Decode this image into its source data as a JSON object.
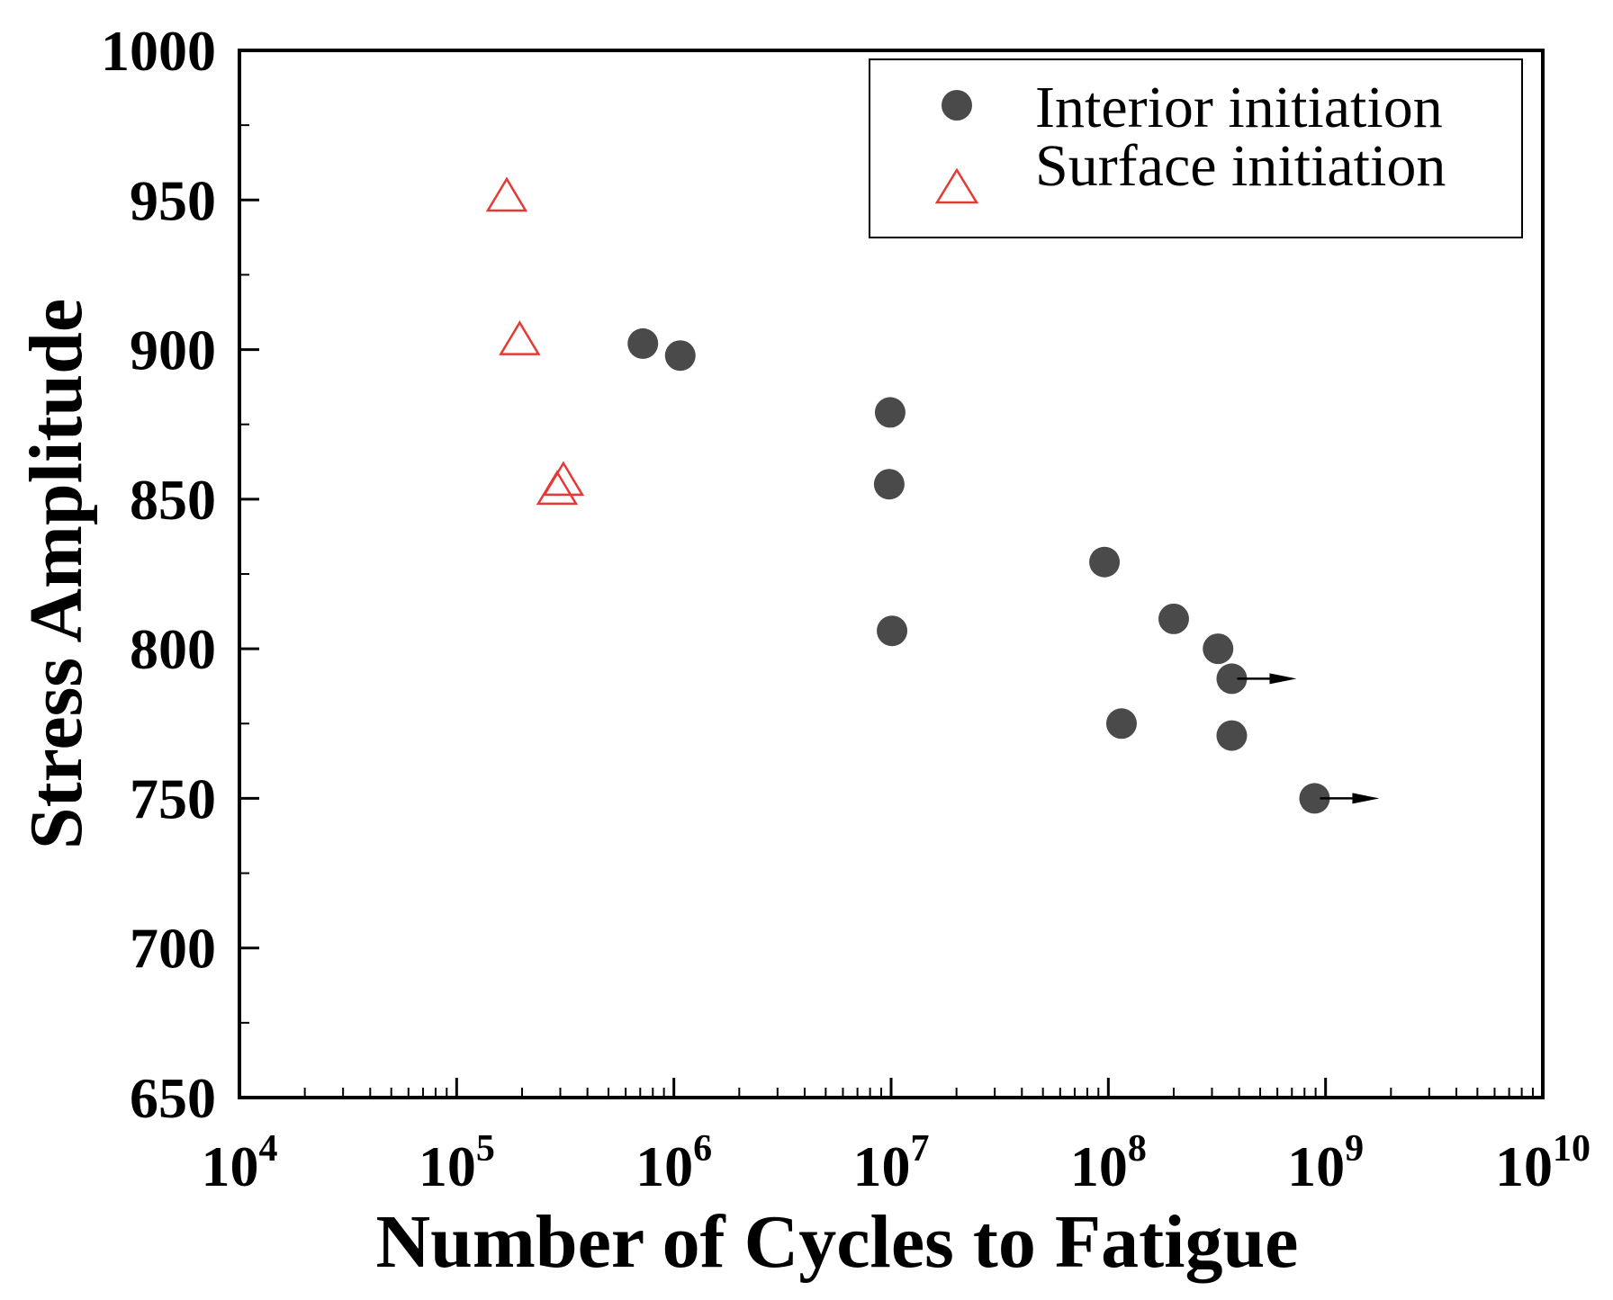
{
  "chart_data": {
    "type": "scatter",
    "xlabel": "Number of Cycles to Fatigue",
    "ylabel": "Stress Amplitude",
    "x_scale": "log",
    "xlim": [
      10000,
      10000000000
    ],
    "ylim": [
      650,
      1000
    ],
    "x_ticks": [
      {
        "value": 10000,
        "base": "10",
        "exp": "4"
      },
      {
        "value": 100000,
        "base": "10",
        "exp": "5"
      },
      {
        "value": 1000000,
        "base": "10",
        "exp": "6"
      },
      {
        "value": 10000000,
        "base": "10",
        "exp": "7"
      },
      {
        "value": 100000000,
        "base": "10",
        "exp": "8"
      },
      {
        "value": 1000000000,
        "base": "10",
        "exp": "9"
      },
      {
        "value": 10000000000,
        "base": "10",
        "exp": "10"
      }
    ],
    "y_ticks": [
      650,
      700,
      750,
      800,
      850,
      900,
      950,
      1000
    ],
    "legend_position": "top-right",
    "series": [
      {
        "name": "Interior initiation",
        "marker": "circle",
        "color": "#4a4a4a",
        "points": [
          {
            "x": 720000,
            "y": 902
          },
          {
            "x": 1070000,
            "y": 898
          },
          {
            "x": 9900000,
            "y": 879
          },
          {
            "x": 9800000,
            "y": 855
          },
          {
            "x": 10100000,
            "y": 806
          },
          {
            "x": 96000000,
            "y": 829
          },
          {
            "x": 115000000,
            "y": 775
          },
          {
            "x": 200000000,
            "y": 810
          },
          {
            "x": 320000000,
            "y": 800
          },
          {
            "x": 370000000,
            "y": 790,
            "runout": true
          },
          {
            "x": 370000000,
            "y": 771
          },
          {
            "x": 890000000,
            "y": 750,
            "runout": true
          }
        ]
      },
      {
        "name": "Surface initiation",
        "marker": "triangle-open",
        "color": "#e53935",
        "points": [
          {
            "x": 170000,
            "y": 951
          },
          {
            "x": 195000,
            "y": 903
          },
          {
            "x": 310000,
            "y": 856
          },
          {
            "x": 290000,
            "y": 853
          }
        ]
      }
    ]
  }
}
